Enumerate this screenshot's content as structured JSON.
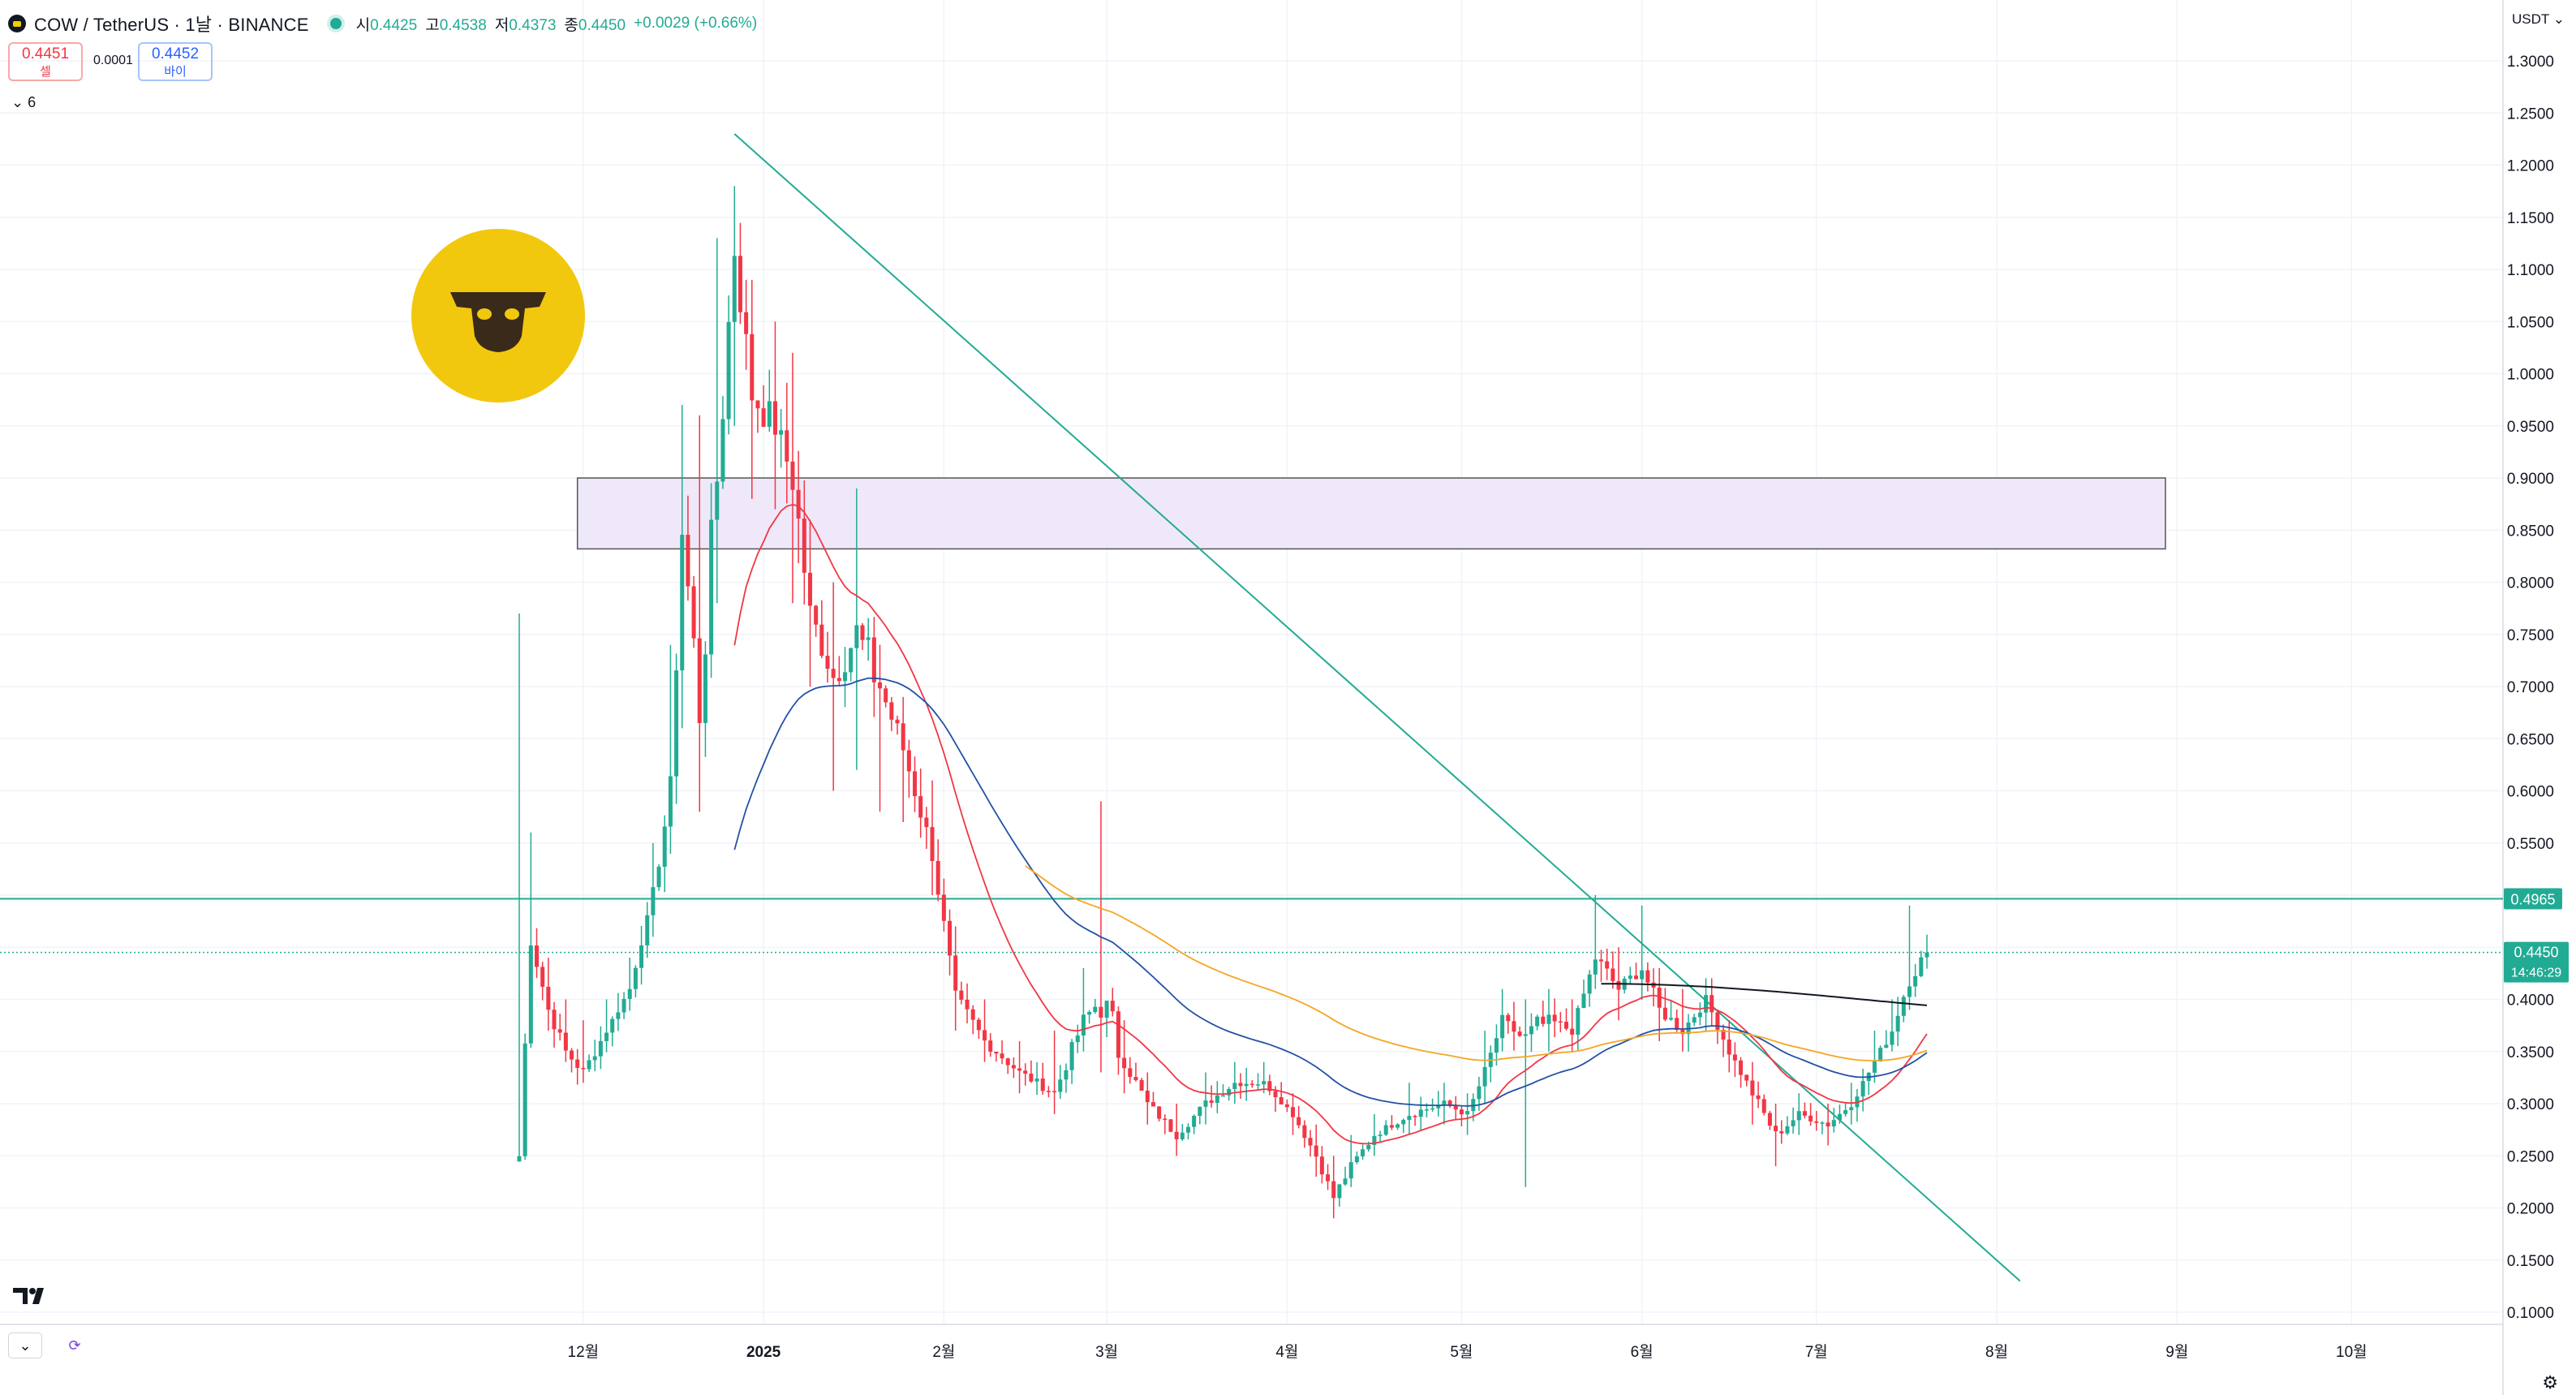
{
  "header": {
    "title": "COW / TetherUS · 1날 · BINANCE",
    "ohlc": [
      {
        "key": "시",
        "value": "0.4425"
      },
      {
        "key": "고",
        "value": "0.4538"
      },
      {
        "key": "저",
        "value": "0.4373"
      },
      {
        "key": "종",
        "value": "0.4450"
      },
      {
        "key": "",
        "value": "+0.0029 (+0.66%)"
      }
    ]
  },
  "quote": {
    "sell_price": "0.4451",
    "sell_label": "셀",
    "spread": "0.0001",
    "buy_price": "0.4452",
    "buy_label": "바이"
  },
  "indicator_toggle": "6",
  "currency": "USDT",
  "colors": {
    "up": "#22ab94",
    "down": "#f23645",
    "ema_red": "#f23645",
    "ema_blue": "#2451a4",
    "ema_orange": "#f5a623",
    "ema_black": "#131722",
    "trendline": "#22ab94",
    "zone_fill": "#efe8f8",
    "zone_border": "#555555",
    "brand_yellow": "#f2c80f"
  },
  "chart_data": {
    "type": "candlestick",
    "y_axis": {
      "scale": "linear",
      "range": [
        0.1,
        1.3
      ],
      "ticks": [
        "1.3000",
        "1.2500",
        "1.2000",
        "1.1500",
        "1.1000",
        "1.0500",
        "1.0000",
        "0.9500",
        "0.9000",
        "0.8500",
        "0.8000",
        "0.7500",
        "0.7000",
        "0.6500",
        "0.6000",
        "0.5500",
        "0.5000",
        "0.4500",
        "0.4000",
        "0.3500",
        "0.3000",
        "0.2500",
        "0.2000",
        "0.1500",
        "0.1000"
      ]
    },
    "x_axis": {
      "labels": [
        "12월",
        "2025",
        "2월",
        "3월",
        "4월",
        "5월",
        "6월",
        "7월",
        "8월",
        "9월",
        "10월"
      ],
      "start_date": "2024-11-20",
      "end_date": "2025-10-15"
    },
    "markers": {
      "horizontal_line": {
        "price": 0.4965,
        "label": "0.4965"
      },
      "current_price": {
        "price": 0.445,
        "label": "0.4450",
        "countdown": "14:46:29"
      }
    },
    "zone": {
      "from_date": "2024-11-30",
      "to_date": "2025-08-30",
      "top": 0.9,
      "bottom": 0.832
    },
    "trendline": {
      "from": [
        "2024-12-27",
        1.23
      ],
      "to": [
        "2025-08-05",
        0.13
      ]
    },
    "candles_anchor_path": [
      [
        "2024-11-20",
        0.25,
        0.77,
        0.52
      ],
      [
        "2024-11-22",
        0.46,
        0.56,
        0.44
      ],
      [
        "2024-11-25",
        0.39,
        0.44,
        0.37
      ],
      [
        "2024-11-28",
        0.35,
        0.4,
        0.34
      ],
      [
        "2024-12-01",
        0.33,
        0.38,
        0.32
      ],
      [
        "2024-12-05",
        0.37,
        0.4,
        0.36
      ],
      [
        "2024-12-09",
        0.41,
        0.44,
        0.4
      ],
      [
        "2024-12-13",
        0.5,
        0.55,
        0.46
      ],
      [
        "2024-12-16",
        0.6,
        0.74,
        0.57
      ],
      [
        "2024-12-18",
        0.85,
        0.97,
        0.66
      ],
      [
        "2024-12-21",
        0.68,
        0.96,
        0.58
      ],
      [
        "2024-12-24",
        0.9,
        1.13,
        0.78
      ],
      [
        "2024-12-27",
        1.12,
        1.18,
        0.95
      ],
      [
        "2024-12-30",
        0.98,
        1.09,
        0.88
      ],
      [
        "2025-01-03",
        0.95,
        1.05,
        0.87
      ],
      [
        "2025-01-06",
        0.9,
        1.02,
        0.78
      ],
      [
        "2025-01-09",
        0.77,
        0.86,
        0.7
      ],
      [
        "2025-01-13",
        0.71,
        0.8,
        0.6
      ],
      [
        "2025-01-17",
        0.75,
        0.89,
        0.62
      ],
      [
        "2025-01-21",
        0.7,
        0.74,
        0.58
      ],
      [
        "2025-01-25",
        0.64,
        0.69,
        0.57
      ],
      [
        "2025-01-30",
        0.54,
        0.61,
        0.5
      ],
      [
        "2025-02-03",
        0.4,
        0.47,
        0.37
      ],
      [
        "2025-02-08",
        0.36,
        0.4,
        0.34
      ],
      [
        "2025-02-14",
        0.33,
        0.36,
        0.31
      ],
      [
        "2025-02-20",
        0.31,
        0.37,
        0.29
      ],
      [
        "2025-02-25",
        0.38,
        0.43,
        0.35
      ],
      [
        "2025-02-28",
        0.4,
        0.59,
        0.33
      ],
      [
        "2025-03-04",
        0.34,
        0.38,
        0.31
      ],
      [
        "2025-03-08",
        0.3,
        0.33,
        0.28
      ],
      [
        "2025-03-13",
        0.27,
        0.3,
        0.25
      ],
      [
        "2025-03-18",
        0.3,
        0.33,
        0.28
      ],
      [
        "2025-03-23",
        0.32,
        0.34,
        0.3
      ],
      [
        "2025-03-28",
        0.32,
        0.34,
        0.31
      ],
      [
        "2025-04-02",
        0.29,
        0.31,
        0.27
      ],
      [
        "2025-04-06",
        0.25,
        0.28,
        0.23
      ],
      [
        "2025-04-09",
        0.21,
        0.25,
        0.19
      ],
      [
        "2025-04-12",
        0.24,
        0.27,
        0.22
      ],
      [
        "2025-04-16",
        0.27,
        0.29,
        0.25
      ],
      [
        "2025-04-22",
        0.29,
        0.32,
        0.27
      ],
      [
        "2025-04-28",
        0.3,
        0.32,
        0.28
      ],
      [
        "2025-05-02",
        0.29,
        0.31,
        0.27
      ],
      [
        "2025-05-05",
        0.33,
        0.37,
        0.3
      ],
      [
        "2025-05-08",
        0.38,
        0.41,
        0.35
      ],
      [
        "2025-05-12",
        0.36,
        0.4,
        0.22
      ],
      [
        "2025-05-16",
        0.38,
        0.41,
        0.35
      ],
      [
        "2025-05-20",
        0.37,
        0.4,
        0.35
      ],
      [
        "2025-05-24",
        0.44,
        0.5,
        0.41
      ],
      [
        "2025-05-28",
        0.41,
        0.45,
        0.38
      ],
      [
        "2025-06-01",
        0.43,
        0.49,
        0.4
      ],
      [
        "2025-06-04",
        0.39,
        0.43,
        0.36
      ],
      [
        "2025-06-08",
        0.37,
        0.41,
        0.35
      ],
      [
        "2025-06-12",
        0.4,
        0.42,
        0.37
      ],
      [
        "2025-06-16",
        0.35,
        0.38,
        0.33
      ],
      [
        "2025-06-20",
        0.31,
        0.34,
        0.28
      ],
      [
        "2025-06-24",
        0.27,
        0.3,
        0.24
      ],
      [
        "2025-06-28",
        0.29,
        0.31,
        0.27
      ],
      [
        "2025-07-03",
        0.28,
        0.3,
        0.26
      ],
      [
        "2025-07-07",
        0.3,
        0.32,
        0.28
      ],
      [
        "2025-07-11",
        0.34,
        0.37,
        0.32
      ],
      [
        "2025-07-14",
        0.37,
        0.4,
        0.35
      ],
      [
        "2025-07-17",
        0.42,
        0.49,
        0.4
      ],
      [
        "2025-07-20",
        0.445,
        0.4538,
        0.4373
      ]
    ],
    "series": [
      {
        "type": "ema",
        "color": "#f23645",
        "start": "2024-12-27",
        "end": "2025-07-20"
      },
      {
        "type": "ema",
        "color": "#2451a4",
        "start": "2024-12-27",
        "end": "2025-07-20"
      },
      {
        "type": "ema",
        "color": "#f5a623",
        "start": "2025-02-15",
        "end": "2025-07-20"
      },
      {
        "type": "ema",
        "color": "#131722",
        "start": "2025-05-25",
        "end": "2025-07-20"
      }
    ]
  }
}
